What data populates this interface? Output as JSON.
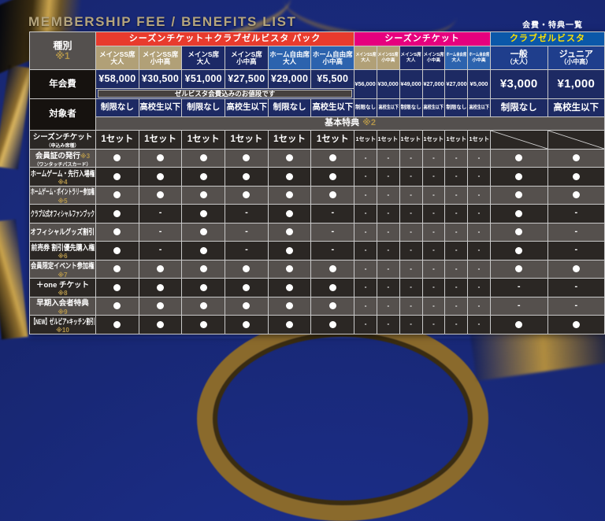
{
  "title": "MEMBERSHIP FEE / BENEFITS LIST",
  "subtitle": "会費・特典一覧",
  "colors": {
    "pack_header": "#e83b2d",
    "season_header": "#e6007e",
    "zel_header_bg": "#0b58a9",
    "zel_header_text": "#ffe100",
    "title_gold": "#b5a57e",
    "note_gold": "#b3954a"
  },
  "type_row": {
    "label": "種別",
    "note": "※1"
  },
  "groups": [
    {
      "label": "シーズンチケット＋クラブゼルビスタ パック"
    },
    {
      "label": "シーズンチケット"
    },
    {
      "label": "クラブゼルビスタ"
    }
  ],
  "columns": [
    {
      "line1": "メインSS席",
      "line2": "大人",
      "bg": "tan",
      "section": "pack"
    },
    {
      "line1": "メインSS席",
      "line2": "小中高",
      "bg": "tan",
      "section": "pack"
    },
    {
      "line1": "メインS席",
      "line2": "大人",
      "bg": "navy",
      "section": "pack"
    },
    {
      "line1": "メインS席",
      "line2": "小中高",
      "bg": "navy",
      "section": "pack"
    },
    {
      "line1": "ホーム自由席",
      "line2": "大人",
      "bg": "blue",
      "section": "pack"
    },
    {
      "line1": "ホーム自由席",
      "line2": "小中高",
      "bg": "blue",
      "section": "pack"
    },
    {
      "line1": "メインSS席",
      "line2": "大人",
      "bg": "tan",
      "section": "season"
    },
    {
      "line1": "メインSS席",
      "line2": "小中高",
      "bg": "tan",
      "section": "season"
    },
    {
      "line1": "メインS席",
      "line2": "大人",
      "bg": "navy",
      "section": "season"
    },
    {
      "line1": "メインS席",
      "line2": "小中高",
      "bg": "navy",
      "section": "season"
    },
    {
      "line1": "ホーム自由席",
      "line2": "大人",
      "bg": "blue",
      "section": "season"
    },
    {
      "line1": "ホーム自由席",
      "line2": "小中高",
      "bg": "blue",
      "section": "season"
    },
    {
      "line1": "一般",
      "line2": "（大人）",
      "bg": "zel",
      "section": "zel"
    },
    {
      "line1": "ジュニア",
      "line2": "（小中高）",
      "bg": "zel",
      "section": "zel"
    }
  ],
  "fee_row": {
    "label": "年会費",
    "pack_fees": [
      "¥58,000",
      "¥30,500",
      "¥51,000",
      "¥27,500",
      "¥29,000",
      "¥5,500"
    ],
    "pack_note": "ゼルビスタ会費込みのお値段です",
    "season_fees": [
      "¥56,000",
      "¥30,000",
      "¥49,000",
      "¥27,000",
      "¥27,000",
      "¥5,000"
    ],
    "zel_fees": [
      "¥3,000",
      "¥1,000"
    ]
  },
  "target_row": {
    "label": "対象者",
    "values": [
      "制限なし",
      "高校生以下",
      "制限なし",
      "高校生以下",
      "制限なし",
      "高校生以下",
      "制限なし",
      "高校生以下",
      "制限なし",
      "高校生以下",
      "制限なし",
      "高校生以下",
      "制限なし",
      "高校生以下"
    ],
    "banner": "基本特典",
    "banner_note": "※2"
  },
  "set_label": "1セット",
  "dash_char": "-",
  "benefit_rows": [
    {
      "line1": "シーズンチケット",
      "sub": "（申込み席種）",
      "cells": [
        "set",
        "set",
        "set",
        "set",
        "set",
        "set",
        "set",
        "set",
        "set",
        "set",
        "set",
        "set",
        "na",
        "na"
      ]
    },
    {
      "line1": "会員証の発行",
      "note_inline": "※3",
      "sub": "（ワンタッチパスカード）",
      "cells": [
        "dot",
        "dot",
        "dot",
        "dot",
        "dot",
        "dot",
        "dash",
        "dash",
        "dash",
        "dash",
        "dash",
        "dash",
        "dot",
        "dot"
      ]
    },
    {
      "line1": "ホームゲーム・先行入場権",
      "note_below": "※4",
      "cells": [
        "dot",
        "dot",
        "dot",
        "dot",
        "dot",
        "dot",
        "dash",
        "dash",
        "dash",
        "dash",
        "dash",
        "dash",
        "dot",
        "dot"
      ]
    },
    {
      "line1": "ホームゲーム・ポイントラリー参加権",
      "note_below": "※5",
      "cells": [
        "dot",
        "dot",
        "dot",
        "dot",
        "dot",
        "dot",
        "dash",
        "dash",
        "dash",
        "dash",
        "dash",
        "dash",
        "dot",
        "dot"
      ]
    },
    {
      "line1": "クラブ公式オフィシャルファンブック",
      "cells": [
        "dot",
        "dash",
        "dot",
        "dash",
        "dot",
        "dash",
        "dash",
        "dash",
        "dash",
        "dash",
        "dash",
        "dash",
        "dot",
        "dash"
      ]
    },
    {
      "line1": "オフィシャルグッズ割引",
      "cells": [
        "dot",
        "dash",
        "dot",
        "dash",
        "dot",
        "dash",
        "dash",
        "dash",
        "dash",
        "dash",
        "dash",
        "dash",
        "dot",
        "dash"
      ]
    },
    {
      "line1": "前売券 割引優先購入権",
      "note_below": "※6",
      "cells": [
        "dot",
        "dash",
        "dot",
        "dash",
        "dot",
        "dash",
        "dash",
        "dash",
        "dash",
        "dash",
        "dash",
        "dash",
        "dot",
        "dash"
      ]
    },
    {
      "line1": "会員限定イベント参加権",
      "note_below": "※7",
      "cells": [
        "dot",
        "dot",
        "dot",
        "dot",
        "dot",
        "dot",
        "dash",
        "dash",
        "dash",
        "dash",
        "dash",
        "dash",
        "dot",
        "dot"
      ]
    },
    {
      "line1": "＋one チケット",
      "note_below": "※8",
      "cells": [
        "dot",
        "dot",
        "dot",
        "dot",
        "dot",
        "dot",
        "dash",
        "dash",
        "dash",
        "dash",
        "dash",
        "dash",
        "dash",
        "dash"
      ]
    },
    {
      "line1": "早期入会者特典",
      "note_below": "※9",
      "cells": [
        "dot",
        "dot",
        "dot",
        "dot",
        "dot",
        "dot",
        "dash",
        "dash",
        "dash",
        "dash",
        "dash",
        "dash",
        "dash",
        "dash"
      ]
    },
    {
      "line1": "【NEW】ゼルビア×キッチン割引",
      "note_below": "※10",
      "cells": [
        "dot",
        "dot",
        "dot",
        "dot",
        "dot",
        "dot",
        "dash",
        "dash",
        "dash",
        "dash",
        "dash",
        "dash",
        "dot",
        "dot"
      ]
    }
  ]
}
